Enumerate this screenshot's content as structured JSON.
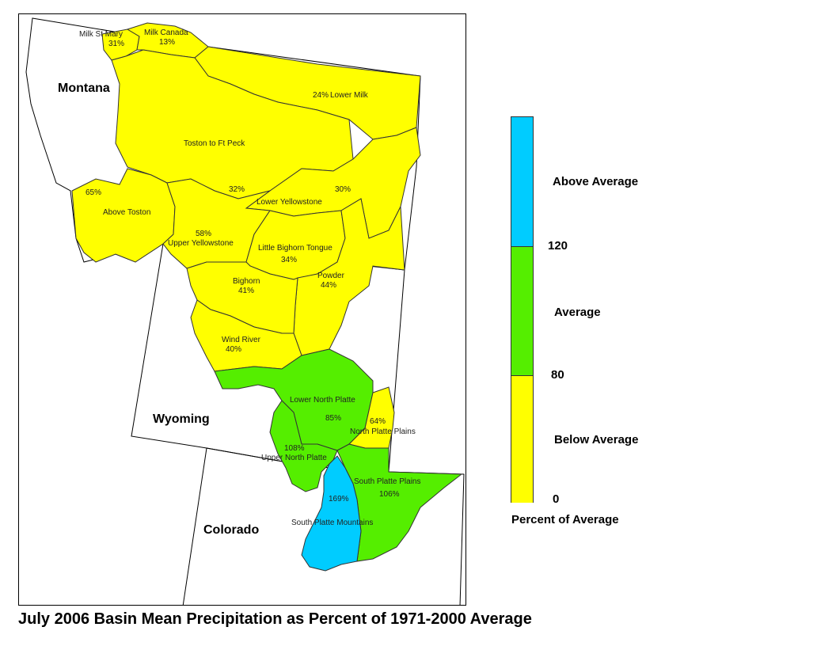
{
  "title": "July 2006 Basin Mean Precipitation as Percent of 1971-2000 Average",
  "colors": {
    "below": "#ffff00",
    "average": "#55ee00",
    "above": "#00ccff",
    "outline": "#333333"
  },
  "states": [
    "Montana",
    "Wyoming",
    "Colorado"
  ],
  "basins": [
    {
      "name": "Milk St Mary",
      "value": "31%",
      "category": "below"
    },
    {
      "name": "Milk Canada",
      "value": "13%",
      "category": "below"
    },
    {
      "name": "Lower Milk",
      "value": "24%",
      "category": "below"
    },
    {
      "name": "Toston to Ft Peck",
      "value": "32%",
      "category": "below"
    },
    {
      "name": "Lower Yellowstone",
      "value": "30%",
      "category": "below"
    },
    {
      "name": "Above Toston",
      "value": "65%",
      "category": "below"
    },
    {
      "name": "Upper Yellowstone",
      "value": "58%",
      "category": "below"
    },
    {
      "name": "Little Bighorn Tongue",
      "value": "34%",
      "category": "below"
    },
    {
      "name": "Powder",
      "value": "44%",
      "category": "below"
    },
    {
      "name": "Bighorn",
      "value": "41%",
      "category": "below"
    },
    {
      "name": "Wind River",
      "value": "40%",
      "category": "below"
    },
    {
      "name": "Lower North Platte",
      "value": "85%",
      "category": "average"
    },
    {
      "name": "North Platte Plains",
      "value": "64%",
      "category": "below"
    },
    {
      "name": "Upper North Platte",
      "value": "108%",
      "category": "average"
    },
    {
      "name": "South Platte Plains",
      "value": "106%",
      "category": "average"
    },
    {
      "name": "South Platte Mountains",
      "value": "169%",
      "category": "above"
    }
  ],
  "legend": {
    "classes": [
      {
        "label": "Above Average",
        "color": "#00ccff"
      },
      {
        "label": "Average",
        "color": "#55ee00"
      },
      {
        "label": "Below Average",
        "color": "#ffff00"
      }
    ],
    "ticks": [
      "120",
      "80",
      "0"
    ],
    "caption": "Percent of Average"
  }
}
